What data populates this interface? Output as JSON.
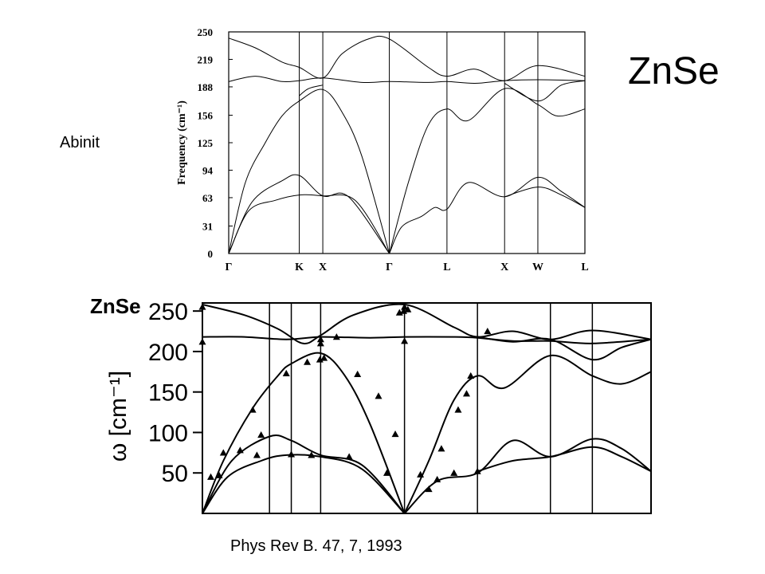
{
  "slide": {
    "title": "ZnSe",
    "label_left": "Abinit",
    "citation": "Phys Rev B. 47, 7, 1993"
  },
  "chart_data": [
    {
      "type": "line",
      "title": "",
      "ylabel": "Frequency (cm⁻¹)",
      "xlabel": "",
      "ylim": [
        0,
        250
      ],
      "yticks": [
        0,
        31,
        63,
        94,
        125,
        156,
        188,
        219,
        250
      ],
      "symmetry_points": [
        {
          "label": "Γ",
          "x": 0
        },
        {
          "label": "K",
          "x": 1.0607
        },
        {
          "label": "X",
          "x": 1.4142
        },
        {
          "label": "Γ",
          "x": 2.4142
        },
        {
          "label": "L",
          "x": 3.2802
        },
        {
          "label": "X",
          "x": 4.1463
        },
        {
          "label": "W",
          "x": 4.6463
        },
        {
          "label": "L",
          "x": 5.3534
        }
      ],
      "series": [
        {
          "points": [
            [
              0,
              0
            ],
            [
              0.3,
              48
            ],
            [
              0.7,
              60
            ],
            [
              1.0607,
              66
            ],
            [
              1.4142,
              65
            ],
            [
              1.9,
              60
            ],
            [
              2.4142,
              0
            ]
          ]
        },
        {
          "points": [
            [
              0,
              0
            ],
            [
              0.35,
              58
            ],
            [
              0.8,
              82
            ],
            [
              1.0607,
              88
            ],
            [
              1.4142,
              65
            ],
            [
              1.8,
              64
            ],
            [
              2.4142,
              0
            ]
          ]
        },
        {
          "points": [
            [
              0,
              0
            ],
            [
              0.25,
              80
            ],
            [
              0.55,
              125
            ],
            [
              0.8,
              155
            ],
            [
              1.0607,
              172
            ],
            [
              1.4142,
              185
            ],
            [
              1.7,
              160
            ],
            [
              2.0,
              110
            ],
            [
              2.4142,
              0
            ]
          ]
        },
        {
          "points": [
            [
              0,
              243
            ],
            [
              0.4,
              232
            ],
            [
              0.8,
              216
            ],
            [
              1.0607,
              210
            ],
            [
              1.4142,
              198
            ],
            [
              1.7,
              225
            ],
            [
              2.1,
              242
            ],
            [
              2.4142,
              242
            ],
            [
              3.0,
              210
            ],
            [
              3.2802,
              200
            ],
            [
              3.7,
              208
            ],
            [
              4.1463,
              195
            ],
            [
              4.6463,
              212
            ],
            [
              5.3534,
              200
            ]
          ]
        },
        {
          "points": [
            [
              0,
              194
            ],
            [
              0.4,
              200
            ],
            [
              0.8,
              194
            ],
            [
              1.0607,
              195
            ],
            [
              1.4142,
              198
            ],
            [
              2.0,
              193
            ],
            [
              2.4142,
              194
            ],
            [
              3.0,
              193
            ],
            [
              3.2802,
              194
            ],
            [
              3.7,
              192
            ],
            [
              4.1463,
              195
            ],
            [
              4.6463,
              196
            ],
            [
              5.3534,
              195
            ]
          ]
        },
        {
          "points": [
            [
              1.0607,
              178
            ],
            [
              1.2,
              186
            ],
            [
              1.4142,
              190
            ]
          ]
        },
        {
          "points": [
            [
              2.4142,
              0
            ],
            [
              2.7,
              80
            ],
            [
              3.0,
              145
            ],
            [
              3.2802,
              163
            ],
            [
              3.6,
              150
            ],
            [
              4.1463,
              186
            ],
            [
              4.6463,
              168
            ],
            [
              4.95,
              155
            ],
            [
              5.3534,
              163
            ]
          ]
        },
        {
          "points": [
            [
              2.4142,
              0
            ],
            [
              2.6,
              30
            ],
            [
              2.9,
              42
            ],
            [
              3.1,
              52
            ],
            [
              3.2802,
              50
            ],
            [
              3.6,
              80
            ],
            [
              4.1463,
              64
            ],
            [
              4.6463,
              86
            ],
            [
              5.0,
              70
            ],
            [
              5.3534,
              52
            ]
          ]
        },
        {
          "points": [
            [
              4.1463,
              64
            ],
            [
              4.6463,
              75
            ],
            [
              5.0,
              66
            ],
            [
              5.3534,
              52
            ]
          ]
        },
        {
          "points": [
            [
              4.1463,
              192
            ],
            [
              4.6463,
              172
            ],
            [
              5.0,
              190
            ],
            [
              5.3534,
              195
            ]
          ]
        }
      ]
    },
    {
      "type": "line",
      "title": "ZnSe",
      "ylabel": "ω [cm⁻¹]",
      "xlabel": "",
      "ylim": [
        0,
        260
      ],
      "yticks": [
        50,
        100,
        150,
        200,
        250
      ],
      "vlines": [
        0.8,
        1.06,
        1.41,
        2.41,
        3.28,
        4.15,
        4.65,
        5.35
      ],
      "series": [
        {
          "points": [
            [
              0,
              0
            ],
            [
              0.3,
              45
            ],
            [
              0.7,
              65
            ],
            [
              1.0,
              72
            ],
            [
              1.41,
              70
            ],
            [
              1.9,
              55
            ],
            [
              2.41,
              0
            ]
          ]
        },
        {
          "points": [
            [
              0,
              0
            ],
            [
              0.35,
              65
            ],
            [
              0.8,
              95
            ],
            [
              1.06,
              90
            ],
            [
              1.41,
              72
            ],
            [
              1.9,
              60
            ],
            [
              2.41,
              0
            ]
          ]
        },
        {
          "points": [
            [
              0,
              0
            ],
            [
              0.25,
              65
            ],
            [
              0.6,
              130
            ],
            [
              0.9,
              170
            ],
            [
              1.06,
              185
            ],
            [
              1.41,
              198
            ],
            [
              1.7,
              170
            ],
            [
              2.0,
              110
            ],
            [
              2.41,
              0
            ]
          ]
        },
        {
          "points": [
            [
              0,
              258
            ],
            [
              0.5,
              245
            ],
            [
              0.9,
              228
            ],
            [
              1.2,
              210
            ],
            [
              1.41,
              220
            ],
            [
              1.8,
              245
            ],
            [
              2.41,
              258
            ],
            [
              3.0,
              230
            ],
            [
              3.28,
              218
            ],
            [
              3.7,
              225
            ],
            [
              4.15,
              215
            ],
            [
              4.65,
              226
            ],
            [
              5.35,
              215
            ]
          ]
        },
        {
          "points": [
            [
              0,
              218
            ],
            [
              0.5,
              218
            ],
            [
              1.0,
              215
            ],
            [
              1.41,
              218
            ],
            [
              2.0,
              217
            ],
            [
              2.41,
              218
            ],
            [
              3.0,
              218
            ],
            [
              3.28,
              217
            ],
            [
              3.7,
              213
            ],
            [
              4.15,
              213
            ],
            [
              4.65,
              210
            ],
            [
              5.35,
              215
            ]
          ]
        },
        {
          "points": [
            [
              2.41,
              0
            ],
            [
              2.7,
              65
            ],
            [
              3.0,
              140
            ],
            [
              3.28,
              170
            ],
            [
              3.6,
              155
            ],
            [
              4.15,
              195
            ],
            [
              4.65,
              170
            ],
            [
              5.0,
              160
            ],
            [
              5.35,
              175
            ]
          ]
        },
        {
          "points": [
            [
              2.41,
              0
            ],
            [
              2.8,
              40
            ],
            [
              3.28,
              50
            ],
            [
              3.7,
              90
            ],
            [
              4.15,
              70
            ],
            [
              4.65,
              92
            ],
            [
              5.0,
              80
            ],
            [
              5.35,
              52
            ]
          ]
        },
        {
          "points": [
            [
              3.28,
              52
            ],
            [
              3.7,
              65
            ],
            [
              4.15,
              70
            ],
            [
              4.65,
              82
            ],
            [
              5.0,
              70
            ],
            [
              5.35,
              52
            ]
          ]
        },
        {
          "points": [
            [
              3.28,
              218
            ],
            [
              3.7,
              212
            ],
            [
              4.15,
              215
            ],
            [
              4.65,
              190
            ],
            [
              5.0,
              205
            ],
            [
              5.35,
              215
            ]
          ]
        }
      ],
      "markers": {
        "shape": "triangle",
        "points": [
          [
            0,
            255
          ],
          [
            0,
            212
          ],
          [
            0.1,
            45
          ],
          [
            0.2,
            47
          ],
          [
            0.25,
            75
          ],
          [
            0.45,
            78
          ],
          [
            0.6,
            128
          ],
          [
            0.65,
            72
          ],
          [
            0.7,
            97
          ],
          [
            1.0,
            173
          ],
          [
            1.06,
            73
          ],
          [
            1.25,
            187
          ],
          [
            1.3,
            72
          ],
          [
            1.4,
            190
          ],
          [
            1.41,
            210
          ],
          [
            1.41,
            215
          ],
          [
            1.45,
            192
          ],
          [
            1.6,
            218
          ],
          [
            1.75,
            70
          ],
          [
            1.85,
            172
          ],
          [
            2.1,
            145
          ],
          [
            2.2,
            50
          ],
          [
            2.3,
            98
          ],
          [
            2.35,
            248
          ],
          [
            2.4,
            250
          ],
          [
            2.45,
            252
          ],
          [
            2.6,
            48
          ],
          [
            2.7,
            30
          ],
          [
            2.41,
            213
          ],
          [
            2.41,
            255
          ],
          [
            2.8,
            42
          ],
          [
            2.85,
            80
          ],
          [
            3.0,
            50
          ],
          [
            3.05,
            128
          ],
          [
            3.15,
            148
          ],
          [
            3.2,
            170
          ],
          [
            3.28,
            52
          ],
          [
            3.4,
            225
          ]
        ]
      }
    }
  ]
}
